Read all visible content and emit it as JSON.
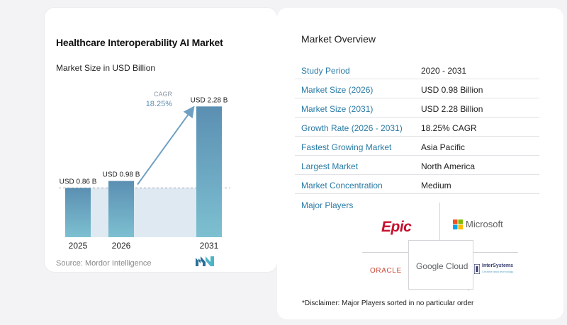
{
  "chart_data": {
    "type": "bar",
    "title": "Healthcare Interoperability AI Market",
    "subtitle": "Market Size in USD Billion",
    "categories": [
      "2025",
      "2026",
      "2031"
    ],
    "values": [
      0.86,
      0.98,
      2.28
    ],
    "value_labels": [
      "USD 0.86 B",
      "USD 0.98 B",
      "USD 2.28 B"
    ],
    "annotation": {
      "label": "CAGR",
      "value": "18.25%"
    },
    "ylim": [
      0,
      2.5
    ],
    "grid": false,
    "colors": {
      "bar_top": "#5b8fb2",
      "bar_bottom": "#7dc0d1",
      "arrow": "#6fa0c2",
      "band": "#dfe9f1"
    }
  },
  "source": "Source: Mordor Intelligence",
  "overview": {
    "title": "Market Overview",
    "rows": [
      {
        "label": "Study Period",
        "value": "2020 - 2031"
      },
      {
        "label": "Market Size (2026)",
        "value": "USD 0.98 Billion"
      },
      {
        "label": "Market Size (2031)",
        "value": "USD 2.28 Billion"
      },
      {
        "label": "Growth Rate (2026 - 2031)",
        "value": "18.25% CAGR"
      },
      {
        "label": "Fastest Growing Market",
        "value": "Asia Pacific"
      },
      {
        "label": "Largest Market",
        "value": "North America"
      },
      {
        "label": "Market Concentration",
        "value": "Medium"
      }
    ]
  },
  "players": {
    "title": "Major Players",
    "epic": "Epic",
    "microsoft": "Microsoft",
    "oracle": "ORACLE",
    "google_cloud": "Google Cloud",
    "intersystems": "InterSystems",
    "intersystems_tagline": "Creative data technology"
  },
  "disclaimer": "*Disclaimer: Major Players sorted in no particular order"
}
